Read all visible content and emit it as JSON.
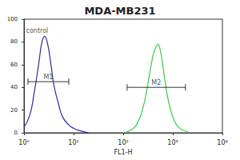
{
  "chart_data": {
    "type": "line",
    "title": "MDA-MB231",
    "x_label": "FL1-H",
    "log": "x",
    "grid": false,
    "xlim": [
      1,
      10000
    ],
    "xticks": [
      {
        "value": 1,
        "label": "10⁰"
      },
      {
        "value": 10,
        "label": "10¹"
      },
      {
        "value": 100,
        "label": "10²"
      },
      {
        "value": 1000,
        "label": "10³"
      },
      {
        "value": 10000,
        "label": "10⁴"
      }
    ],
    "ylim": [
      0,
      100
    ],
    "yticks": [
      0,
      20,
      40,
      60,
      80,
      100
    ],
    "series": [
      {
        "color": "#2a2f9c",
        "x": [
          1,
          1.3,
          1.6,
          2,
          2.3,
          2.6,
          3,
          3.5,
          4,
          5,
          6,
          8,
          10,
          13,
          20
        ],
        "values": [
          5,
          15,
          35,
          62,
          80,
          85,
          78,
          60,
          42,
          25,
          14,
          7,
          4,
          2,
          0
        ]
      },
      {
        "color": "#3cc84a",
        "x": [
          100,
          150,
          200,
          250,
          300,
          350,
          400,
          450,
          500,
          550,
          600,
          700,
          800,
          1000,
          1300,
          2000
        ],
        "values": [
          0,
          3,
          10,
          22,
          38,
          55,
          68,
          75,
          78,
          74,
          65,
          45,
          30,
          14,
          5,
          1
        ]
      }
    ],
    "annotations": [
      {
        "text": "control",
        "x": 1.1,
        "y": 90
      },
      {
        "text": "M1",
        "x": [
          1.2,
          8
        ],
        "y": 45
      },
      {
        "text": "M2",
        "x": [
          120,
          1800
        ],
        "y": 40
      }
    ]
  }
}
